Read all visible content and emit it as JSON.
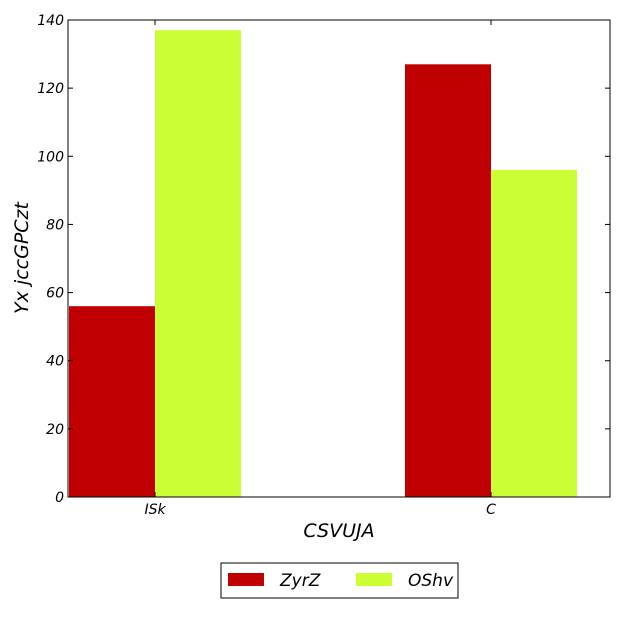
{
  "chart_data": {
    "type": "bar",
    "categories": [
      "ISk",
      "C"
    ],
    "series": [
      {
        "name": "ZyrZ",
        "values": [
          56,
          127
        ],
        "color": "#c00000"
      },
      {
        "name": "OShv",
        "values": [
          137,
          96
        ],
        "color": "#ccff33"
      }
    ],
    "title": "",
    "xlabel": "CSVUJA",
    "ylabel": "Yx jccGPCzt",
    "ylim": [
      0,
      140
    ],
    "yticks": [
      0,
      20,
      40,
      60,
      80,
      100,
      120,
      140
    ],
    "grid": false,
    "legend_position": "bottom-center"
  }
}
